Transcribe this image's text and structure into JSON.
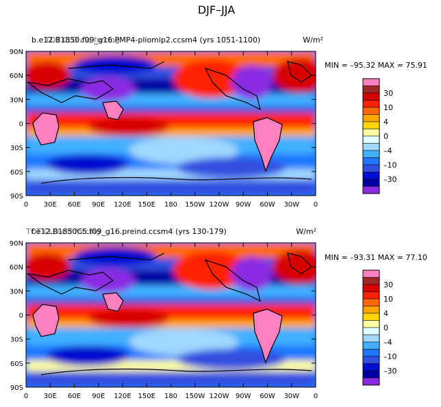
{
  "page_title": "DJF–JJA",
  "chart_data": [
    {
      "type": "heatmap",
      "subtitle_left": "b.e12.B1850.f09_g16.PMP4-pliomip2.ccsm4 (yrs 1051-1100)",
      "subtitle_overlay": "TOT CLD cld forcing",
      "units": "W/m²",
      "stats": "MIN = –95.32  MAX =  75.91",
      "min": -95.32,
      "max": 75.91,
      "x_ticks": [
        "0",
        "30E",
        "60E",
        "90E",
        "120E",
        "150E",
        "180",
        "150W",
        "120W",
        "90W",
        "60W",
        "30W",
        "0"
      ],
      "y_ticks": [
        "90N",
        "60N",
        "30N",
        "0",
        "30S",
        "60S",
        "90S"
      ],
      "colorbar_labels": [
        "30",
        "10",
        "4",
        "0",
        "–4",
        "–10",
        "–30"
      ]
    },
    {
      "type": "heatmap",
      "subtitle_left": "f.e12.B1850C5.f09_g16.preind.ccsm4 (yrs 130-179)",
      "subtitle_overlay": "TOT CLD cld forcing",
      "units": "W/m²",
      "stats": "MIN = –93.31  MAX =  77.10",
      "min": -93.31,
      "max": 77.1,
      "x_ticks": [
        "0",
        "30E",
        "60E",
        "90E",
        "120E",
        "150E",
        "180",
        "150W",
        "120W",
        "90W",
        "60W",
        "30W",
        "0"
      ],
      "y_ticks": [
        "90N",
        "60N",
        "30N",
        "0",
        "30S",
        "60S",
        "90S"
      ],
      "colorbar_labels": [
        "30",
        "10",
        "4",
        "0",
        "–4",
        "–10",
        "–30"
      ]
    }
  ],
  "palette": {
    "levels": [
      "#ff80c0",
      "#a02828",
      "#d80000",
      "#ff2000",
      "#ff6a00",
      "#ffa500",
      "#ffd700",
      "#ffffa0",
      "#e0ffff",
      "#a0d8ff",
      "#40b0ff",
      "#1e78ff",
      "#3050e0",
      "#0010d0",
      "#0000a0",
      "#8a2be2"
    ]
  }
}
